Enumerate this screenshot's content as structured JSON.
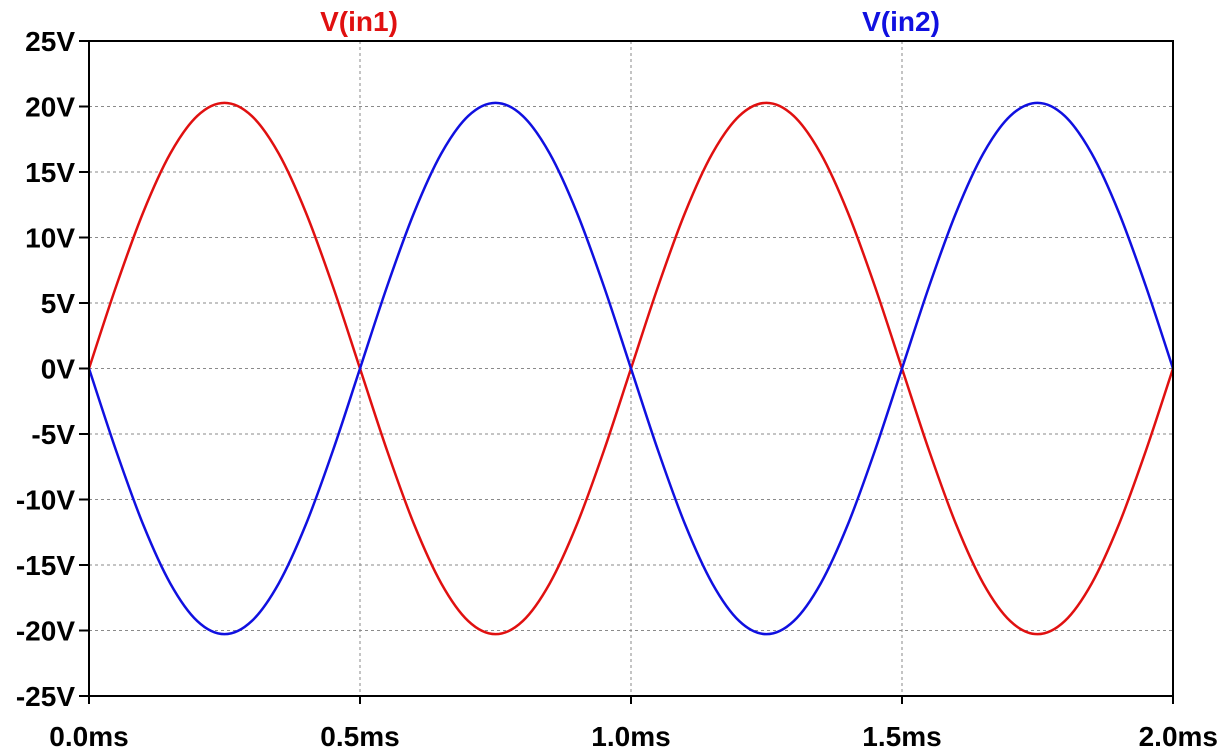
{
  "chart_data": {
    "type": "line",
    "title": "",
    "xlabel": "",
    "ylabel": "",
    "xlim": [
      0.0,
      2.0
    ],
    "ylim": [
      -25,
      25
    ],
    "x_ticks": [
      0.0,
      0.5,
      1.0,
      1.5,
      2.0
    ],
    "x_tick_labels": [
      "0.0ms",
      "0.5ms",
      "1.0ms",
      "1.5ms",
      "2.0ms"
    ],
    "y_ticks": [
      25,
      20,
      15,
      10,
      5,
      0,
      -5,
      -10,
      -15,
      -20,
      -25
    ],
    "y_tick_labels": [
      "25V",
      "20V",
      "15V",
      "10V",
      "5V",
      "0V",
      "-5V",
      "-10V",
      "-15V",
      "-20V",
      "-25V"
    ],
    "grid": true,
    "legend_placement": "top",
    "x": [
      0.0,
      0.05,
      0.1,
      0.15,
      0.2,
      0.25,
      0.3,
      0.35,
      0.4,
      0.45,
      0.5,
      0.55,
      0.6,
      0.65,
      0.7,
      0.75,
      0.8,
      0.85,
      0.9,
      0.95,
      1.0,
      1.05,
      1.1,
      1.15,
      1.2,
      1.25,
      1.3,
      1.35,
      1.4,
      1.45,
      1.5,
      1.55,
      1.6,
      1.65,
      1.7,
      1.75,
      1.8,
      1.85,
      1.9,
      1.95,
      2.0
    ],
    "series": [
      {
        "name": "V(in1)",
        "color": "#e01010",
        "values": [
          0.0,
          6.27,
          11.92,
          16.41,
          19.29,
          20.28,
          19.29,
          16.41,
          11.92,
          6.27,
          0.0,
          -6.27,
          -11.92,
          -16.41,
          -19.29,
          -20.28,
          -19.29,
          -16.41,
          -11.92,
          -6.27,
          0.0,
          6.27,
          11.92,
          16.41,
          19.29,
          20.28,
          19.29,
          16.41,
          11.92,
          6.27,
          0.0,
          -6.27,
          -11.92,
          -16.41,
          -19.29,
          -20.28,
          -19.29,
          -16.41,
          -11.92,
          -6.27,
          0.0
        ]
      },
      {
        "name": "V(in2)",
        "color": "#1010e0",
        "values": [
          0.0,
          -6.27,
          -11.92,
          -16.41,
          -19.29,
          -20.28,
          -19.29,
          -16.41,
          -11.92,
          -6.27,
          0.0,
          6.27,
          11.92,
          16.41,
          19.29,
          20.28,
          19.29,
          16.41,
          11.92,
          6.27,
          0.0,
          -6.27,
          -11.92,
          -16.41,
          -19.29,
          -20.28,
          -19.29,
          -16.41,
          -11.92,
          -6.27,
          0.0,
          6.27,
          11.92,
          16.41,
          19.29,
          20.28,
          19.29,
          16.41,
          11.92,
          6.27,
          0.0
        ]
      }
    ]
  }
}
